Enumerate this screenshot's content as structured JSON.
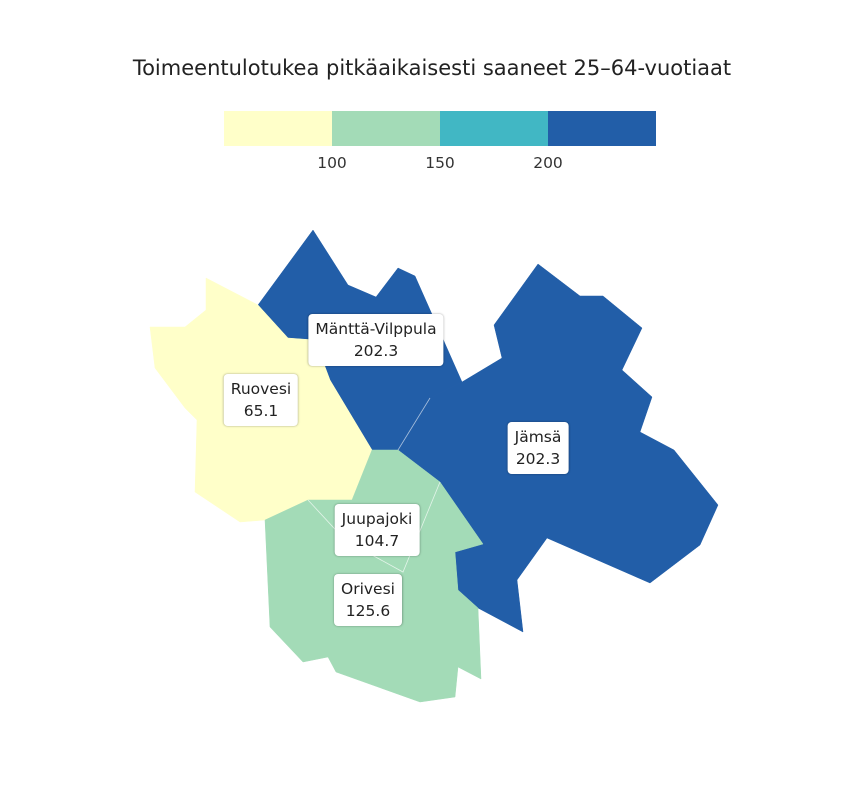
{
  "title": "Toimeentulotukea pitkäaikaisesti saaneet 25–64-vuotiaat",
  "legend": {
    "colors": [
      "#ffffc9",
      "#a3dbb7",
      "#41b7c4",
      "#225ea8"
    ],
    "ticks": [
      "100",
      "150",
      "200"
    ]
  },
  "regions": [
    {
      "name": "Mänttä-Vilppula",
      "value": "202.3",
      "color": "#225ea8"
    },
    {
      "name": "Ruovesi",
      "value": "65.1",
      "color": "#ffffc9"
    },
    {
      "name": "Jämsä",
      "value": "202.3",
      "color": "#225ea8"
    },
    {
      "name": "Juupajoki",
      "value": "104.7",
      "color": "#a3dbb7"
    },
    {
      "name": "Orivesi",
      "value": "125.6",
      "color": "#a3dbb7"
    }
  ]
}
